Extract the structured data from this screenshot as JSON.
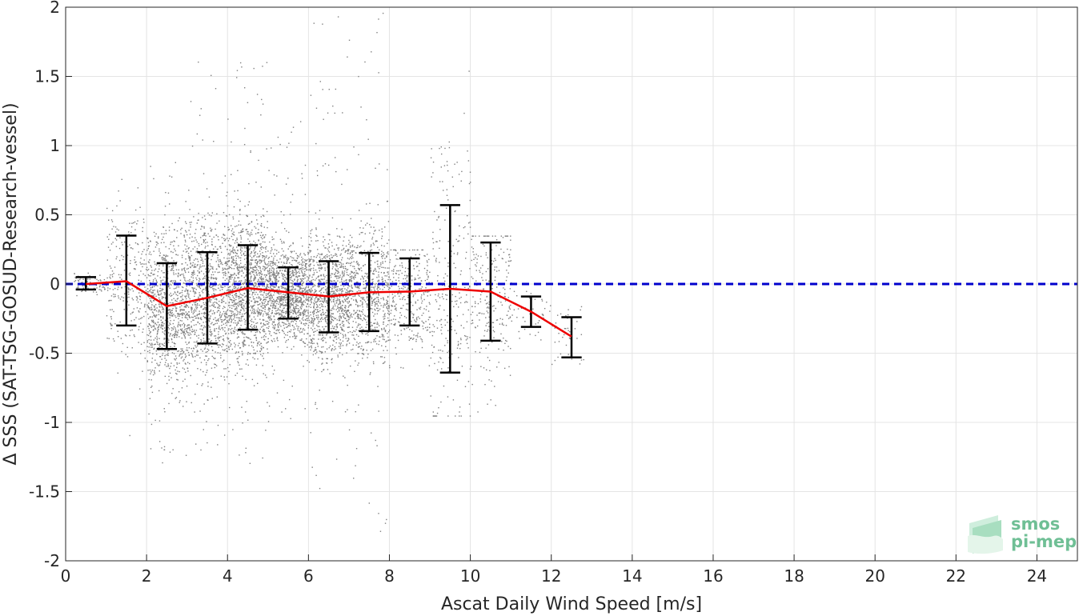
{
  "chart_data": {
    "type": "scatter",
    "title": "",
    "xlabel": "Ascat Daily Wind Speed [m/s]",
    "ylabel": "Δ SSS (SAT-TSG-GOSUD-Research-vessel)",
    "xlim": [
      0,
      25
    ],
    "ylim": [
      -2,
      2
    ],
    "xticks": [
      0,
      2,
      4,
      6,
      8,
      10,
      12,
      14,
      16,
      18,
      20,
      22,
      24
    ],
    "yticks": [
      -2,
      -1.5,
      -1,
      -0.5,
      0,
      0.5,
      1,
      1.5,
      2
    ],
    "ytick_labels": [
      "-2",
      "-1.5",
      "-1",
      "-0.5",
      "0",
      "0.5",
      "1",
      "1.5",
      "2"
    ],
    "grid": true,
    "zero_line": {
      "y": 0,
      "style": "dashed",
      "color": "#0000cc"
    },
    "mean_series": {
      "name": "",
      "color": "#ee0000",
      "x": [
        0.5,
        1.5,
        2.5,
        3.5,
        4.5,
        5.5,
        6.5,
        7.5,
        8.5,
        9.5,
        10.5,
        11.5,
        12.5
      ],
      "y": [
        0.0,
        0.02,
        -0.16,
        -0.1,
        -0.03,
        -0.06,
        -0.09,
        -0.06,
        -0.055,
        -0.035,
        -0.055,
        -0.2,
        -0.38
      ]
    },
    "error_bars": [
      {
        "x": 0.5,
        "low": -0.04,
        "high": 0.05
      },
      {
        "x": 1.5,
        "low": -0.3,
        "high": 0.35
      },
      {
        "x": 2.5,
        "low": -0.47,
        "high": 0.15
      },
      {
        "x": 3.5,
        "low": -0.43,
        "high": 0.23
      },
      {
        "x": 4.5,
        "low": -0.33,
        "high": 0.28
      },
      {
        "x": 5.5,
        "low": -0.25,
        "high": 0.12
      },
      {
        "x": 6.5,
        "low": -0.35,
        "high": 0.165
      },
      {
        "x": 7.5,
        "low": -0.34,
        "high": 0.225
      },
      {
        "x": 8.5,
        "low": -0.3,
        "high": 0.185
      },
      {
        "x": 9.5,
        "low": -0.64,
        "high": 0.57
      },
      {
        "x": 10.5,
        "low": -0.41,
        "high": 0.3
      },
      {
        "x": 11.5,
        "low": -0.31,
        "high": -0.09
      },
      {
        "x": 12.5,
        "low": -0.53,
        "high": -0.24
      }
    ],
    "scatter_color": "#808080",
    "scatter_bins": [
      {
        "x0": 0.2,
        "x1": 1.0,
        "mean": 0.0,
        "sd": 0.04,
        "min": -0.12,
        "max": 0.2,
        "n": 80
      },
      {
        "x0": 1.0,
        "x1": 2.0,
        "mean": 0.02,
        "sd": 0.3,
        "min": -1.15,
        "max": 1.05,
        "n": 260
      },
      {
        "x0": 2.0,
        "x1": 3.0,
        "mean": -0.16,
        "sd": 0.31,
        "min": -1.3,
        "max": 0.95,
        "n": 900
      },
      {
        "x0": 3.0,
        "x1": 4.0,
        "mean": -0.1,
        "sd": 0.33,
        "min": -1.25,
        "max": 1.7,
        "n": 900
      },
      {
        "x0": 4.0,
        "x1": 5.0,
        "mean": -0.03,
        "sd": 0.3,
        "min": -1.3,
        "max": 1.62,
        "n": 1200
      },
      {
        "x0": 5.0,
        "x1": 6.0,
        "mean": -0.06,
        "sd": 0.19,
        "min": -1.0,
        "max": 1.2,
        "n": 1100
      },
      {
        "x0": 6.0,
        "x1": 7.0,
        "mean": -0.09,
        "sd": 0.26,
        "min": -1.48,
        "max": 2.0,
        "n": 1000
      },
      {
        "x0": 7.0,
        "x1": 8.0,
        "mean": -0.06,
        "sd": 0.28,
        "min": -1.82,
        "max": 2.0,
        "n": 700
      },
      {
        "x0": 8.0,
        "x1": 9.0,
        "mean": -0.055,
        "sd": 0.24,
        "min": -0.65,
        "max": 0.25,
        "n": 300
      },
      {
        "x0": 9.0,
        "x1": 10.0,
        "mean": -0.035,
        "sd": 0.6,
        "min": -0.95,
        "max": 2.0,
        "n": 250
      },
      {
        "x0": 10.0,
        "x1": 11.0,
        "mean": -0.055,
        "sd": 0.35,
        "min": -1.08,
        "max": 0.35,
        "n": 250
      },
      {
        "x0": 11.0,
        "x1": 12.0,
        "mean": -0.2,
        "sd": 0.11,
        "min": -0.4,
        "max": -0.05,
        "n": 40
      },
      {
        "x0": 12.0,
        "x1": 12.8,
        "mean": -0.38,
        "sd": 0.14,
        "min": -0.65,
        "max": -0.1,
        "n": 40
      }
    ]
  },
  "logo": {
    "line1": "smos",
    "line2": "pi-mep",
    "color": "#6fbf95"
  }
}
